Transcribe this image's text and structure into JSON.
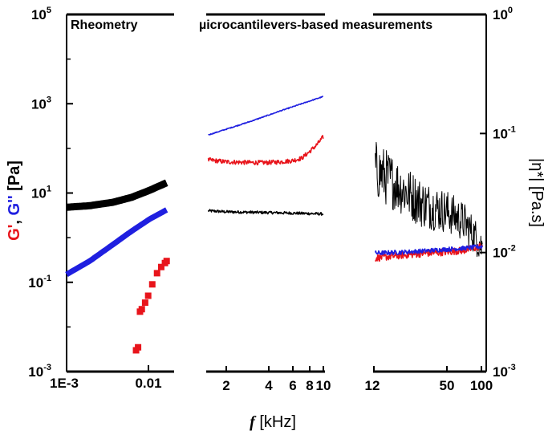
{
  "chart_data": {
    "type": "scatter",
    "panels": [
      {
        "title": "Rheometry",
        "x_ticks": [
          "1E-3",
          "0.01"
        ]
      },
      {
        "title": "µicrocantilevers-based measurements",
        "x_ticks": [
          "2",
          "4",
          "6",
          "8",
          "10"
        ]
      },
      {
        "title": "",
        "x_ticks": [
          "12",
          "50",
          "100"
        ]
      }
    ],
    "x_label": {
      "italic_symbol": "f",
      "unit": " [kHz]"
    },
    "y_left": {
      "scale": "log",
      "range": [
        0.001,
        100000
      ],
      "ticks": [
        {
          "base": "10",
          "exp": "-3"
        },
        {
          "base": "10",
          "exp": "-1"
        },
        {
          "base": "10",
          "exp": "1"
        },
        {
          "base": "10",
          "exp": "3"
        },
        {
          "base": "10",
          "exp": "5"
        }
      ],
      "label_parts": [
        {
          "text": "G'",
          "color": "#e8141b"
        },
        {
          "text": ", ",
          "color": "#000000"
        },
        {
          "text": "G''",
          "color": "#1f1fe0"
        },
        {
          "text": " [Pa]",
          "color": "#000000"
        }
      ]
    },
    "y_right": {
      "scale": "log",
      "range": [
        0.001,
        1
      ],
      "ticks": [
        {
          "base": "10",
          "exp": "-3"
        },
        {
          "base": "10",
          "exp": "-2"
        },
        {
          "base": "10",
          "exp": "-1"
        },
        {
          "base": "10",
          "exp": "0"
        }
      ],
      "label": "|η*| [Pa.s]"
    },
    "colors": {
      "storage": "#e8141b",
      "loss": "#1f1fe0",
      "viscosity": "#000000"
    },
    "series": [
      {
        "id": "G1",
        "panel": 0,
        "role": "loss",
        "x": [
          0.001,
          0.002,
          0.004,
          0.007,
          0.012,
          0.02
        ],
        "y": [
          0.15,
          0.3,
          0.7,
          1.4,
          2.6,
          4.2
        ]
      },
      {
        "id": "E1",
        "panel": 0,
        "role": "viscosity",
        "x": [
          0.001,
          0.002,
          0.004,
          0.007,
          0.012,
          0.02
        ],
        "y": [
          4.8,
          5.2,
          6.2,
          8.0,
          11.5,
          17.0
        ]
      },
      {
        "id": "S1",
        "panel": 0,
        "role": "storage",
        "x": [
          0.008,
          0.0085,
          0.009,
          0.0095,
          0.0105,
          0.0115,
          0.013,
          0.015,
          0.017,
          0.019,
          0.02
        ],
        "y": [
          0.003,
          0.0035,
          0.022,
          0.025,
          0.035,
          0.05,
          0.09,
          0.16,
          0.22,
          0.27,
          0.3
        ]
      },
      {
        "id": "G2",
        "panel": 1,
        "role": "loss",
        "x": [
          1.5,
          3,
          5,
          10
        ],
        "y": [
          200,
          400,
          700,
          1450
        ]
      },
      {
        "id": "S2",
        "panel": 1,
        "role": "storage",
        "x": [
          1.5,
          2,
          3,
          4,
          5,
          6,
          7,
          8,
          9,
          10
        ],
        "y": [
          55,
          50,
          48,
          48,
          50,
          53,
          60,
          85,
          120,
          180
        ]
      },
      {
        "id": "E2",
        "panel": 1,
        "role": "viscosity",
        "x": [
          1.5,
          2,
          3,
          5,
          7,
          10
        ],
        "y": [
          4.0,
          3.8,
          3.7,
          3.6,
          3.5,
          3.4
        ]
      },
      {
        "id": "G3",
        "panel": 2,
        "role": "loss",
        "x": [
          12,
          20,
          30,
          50,
          70,
          90,
          100
        ],
        "y": [
          0.45,
          0.47,
          0.5,
          0.55,
          0.58,
          0.62,
          0.63
        ]
      },
      {
        "id": "S3",
        "panel": 2,
        "role": "storage",
        "x": [
          12,
          20,
          30,
          50,
          70,
          90,
          100
        ],
        "y": [
          0.35,
          0.4,
          0.44,
          0.48,
          0.52,
          0.6,
          0.7
        ]
      },
      {
        "id": "E3",
        "panel": 2,
        "role": "viscosity",
        "x": [
          12,
          20,
          30,
          50,
          70,
          90,
          100
        ],
        "y": [
          0.05,
          0.035,
          0.026,
          0.022,
          0.018,
          0.013,
          0.011
        ]
      }
    ]
  }
}
